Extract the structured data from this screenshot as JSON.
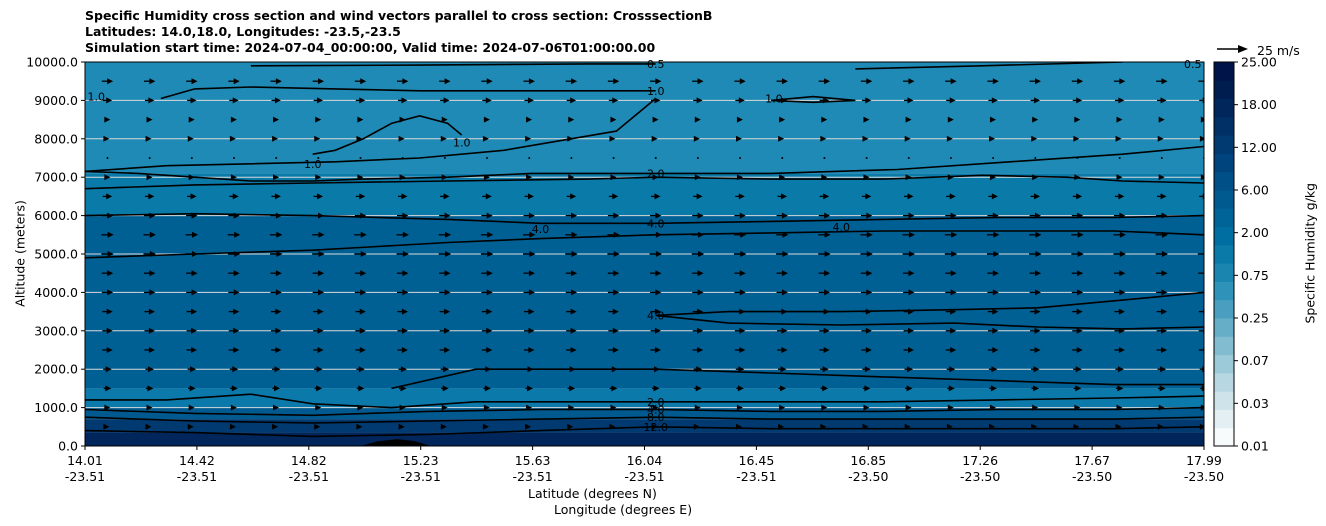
{
  "chart_data": {
    "type": "heatmap",
    "title_lines": [
      "Specific Humidity cross section and wind vectors parallel to cross section: CrosssectionB",
      "Latitudes: 14.0,18.0, Longitudes: -23.5,-23.5",
      "Simulation start time: 2024-07-04_00:00:00, Valid time: 2024-07-06T01:00:00.00"
    ],
    "xlabel_lat": "Latitude (degrees N)",
    "xlabel_lon": "Longitude (degrees E)",
    "ylabel": "Altitude (meters)",
    "colorbar_label": "Specific Humidity g/kg",
    "wind_key_label": "25 m/s",
    "ylim": [
      0,
      10000
    ],
    "yticks": [
      {
        "v": 0,
        "label": "0.0"
      },
      {
        "v": 1000,
        "label": "1000.0"
      },
      {
        "v": 2000,
        "label": "2000.0"
      },
      {
        "v": 3000,
        "label": "3000.0"
      },
      {
        "v": 4000,
        "label": "4000.0"
      },
      {
        "v": 5000,
        "label": "5000.0"
      },
      {
        "v": 6000,
        "label": "6000.0"
      },
      {
        "v": 7000,
        "label": "7000.0"
      },
      {
        "v": 8000,
        "label": "8000.0"
      },
      {
        "v": 9000,
        "label": "9000.0"
      },
      {
        "v": 10000,
        "label": "10000.0"
      }
    ],
    "xticks": [
      {
        "lat": "14.01",
        "lon": "-23.51"
      },
      {
        "lat": "14.42",
        "lon": "-23.51"
      },
      {
        "lat": "14.82",
        "lon": "-23.51"
      },
      {
        "lat": "15.23",
        "lon": "-23.51"
      },
      {
        "lat": "15.63",
        "lon": "-23.51"
      },
      {
        "lat": "16.04",
        "lon": "-23.51"
      },
      {
        "lat": "16.45",
        "lon": "-23.51"
      },
      {
        "lat": "16.85",
        "lon": "-23.50"
      },
      {
        "lat": "17.26",
        "lon": "-23.50"
      },
      {
        "lat": "17.67",
        "lon": "-23.50"
      },
      {
        "lat": "17.99",
        "lon": "-23.50"
      }
    ],
    "colorbar_ticks": [
      "0.01",
      "0.03",
      "0.07",
      "0.25",
      "0.75",
      "2.00",
      "6.00",
      "12.00",
      "18.00",
      "25.00"
    ],
    "colorbar_levels": [
      "#f7fbfc",
      "#e3eff3",
      "#cfe4ea",
      "#b7d8e2",
      "#9dcad9",
      "#82bcd1",
      "#66adc8",
      "#4a9fc0",
      "#2f92b8",
      "#1a86b0",
      "#0a7aa9",
      "#006ea0",
      "#006498",
      "#005a8f",
      "#004f87",
      "#00447d",
      "#003a71",
      "#003066",
      "#00265b",
      "#001d50",
      "#00144a"
    ],
    "humidity_bands": [
      {
        "alt_top": 10000,
        "color": "#1f8ab5"
      },
      {
        "alt_top": 7100,
        "color": "#0a7aa9"
      },
      {
        "alt_top": 6000,
        "color": "#005f93"
      },
      {
        "alt_top": 1500,
        "color": "#0b7aab"
      },
      {
        "alt_top": 1000,
        "color": "#005a8f"
      },
      {
        "alt_top": 700,
        "color": "#003a71"
      },
      {
        "alt_top": 350,
        "color": "#00265b"
      }
    ],
    "contours": [
      {
        "level": "0.5",
        "points": [
          [
            14.6,
            9900
          ],
          [
            15.2,
            9920
          ],
          [
            15.8,
            9950
          ],
          [
            16.04,
            9950
          ]
        ]
      },
      {
        "level": "0.5",
        "points": [
          [
            16.75,
            9820
          ],
          [
            17.2,
            9900
          ],
          [
            17.7,
            10000
          ]
        ]
      },
      {
        "level": "1.0",
        "points": [
          [
            14.01,
            7150
          ],
          [
            14.3,
            7300
          ],
          [
            14.6,
            7350
          ],
          [
            14.9,
            7400
          ],
          [
            15.2,
            7500
          ],
          [
            15.5,
            7700
          ],
          [
            15.9,
            8200
          ],
          [
            16.04,
            9050
          ]
        ]
      },
      {
        "level": "1.0",
        "points": [
          [
            14.01,
            7150
          ],
          [
            14.2,
            7100
          ],
          [
            14.4,
            7000
          ],
          [
            14.6,
            6900
          ],
          [
            14.82,
            6900
          ],
          [
            15.0,
            6950
          ],
          [
            15.3,
            7000
          ],
          [
            15.6,
            7100
          ],
          [
            16.0,
            7100
          ],
          [
            16.45,
            7100
          ],
          [
            16.9,
            7200
          ],
          [
            17.3,
            7400
          ],
          [
            17.7,
            7600
          ],
          [
            17.99,
            7800
          ]
        ]
      },
      {
        "level": "1.0",
        "points": [
          [
            14.28,
            9050
          ],
          [
            14.4,
            9300
          ],
          [
            14.6,
            9350
          ],
          [
            14.9,
            9300
          ],
          [
            15.2,
            9250
          ],
          [
            15.6,
            9250
          ],
          [
            16.04,
            9250
          ]
        ]
      },
      {
        "level": "1.0",
        "points": [
          [
            14.82,
            7600
          ],
          [
            14.9,
            7700
          ],
          [
            15.0,
            8000
          ],
          [
            15.1,
            8400
          ],
          [
            15.2,
            8600
          ],
          [
            15.3,
            8400
          ],
          [
            15.35,
            8100
          ]
        ]
      },
      {
        "level": "1.0",
        "points": [
          [
            16.45,
            9000
          ],
          [
            16.6,
            9100
          ],
          [
            16.75,
            9000
          ],
          [
            16.6,
            8950
          ],
          [
            16.45,
            9000
          ]
        ]
      },
      {
        "level": "2.0",
        "points": [
          [
            14.01,
            6700
          ],
          [
            14.4,
            6800
          ],
          [
            14.82,
            6850
          ],
          [
            15.3,
            6900
          ],
          [
            15.8,
            6950
          ],
          [
            16.04,
            7000
          ],
          [
            16.45,
            6950
          ],
          [
            16.85,
            6950
          ],
          [
            17.2,
            7050
          ],
          [
            17.5,
            7000
          ],
          [
            17.7,
            6900
          ],
          [
            17.99,
            6850
          ]
        ]
      },
      {
        "level": "4.0",
        "points": [
          [
            14.01,
            6000
          ],
          [
            14.4,
            6050
          ],
          [
            14.82,
            6000
          ],
          [
            15.3,
            5900
          ],
          [
            15.63,
            5800
          ],
          [
            16.04,
            5800
          ],
          [
            16.45,
            5850
          ],
          [
            16.85,
            5900
          ],
          [
            17.26,
            5950
          ],
          [
            17.67,
            5950
          ],
          [
            17.99,
            6000
          ]
        ]
      },
      {
        "level": "4.0",
        "points": [
          [
            14.01,
            4900
          ],
          [
            14.4,
            5000
          ],
          [
            14.82,
            5100
          ],
          [
            15.3,
            5300
          ],
          [
            15.63,
            5400
          ],
          [
            16.04,
            5500
          ],
          [
            16.45,
            5550
          ],
          [
            16.85,
            5600
          ],
          [
            17.26,
            5600
          ],
          [
            17.67,
            5600
          ],
          [
            17.99,
            5500
          ]
        ]
      },
      {
        "level": "4.0",
        "points": [
          [
            16.04,
            3400
          ],
          [
            16.3,
            3500
          ],
          [
            16.7,
            3500
          ],
          [
            17.1,
            3550
          ],
          [
            17.4,
            3600
          ],
          [
            17.7,
            3800
          ],
          [
            17.99,
            4000
          ]
        ]
      },
      {
        "level": "4.0",
        "points": [
          [
            16.04,
            3400
          ],
          [
            16.3,
            3200
          ],
          [
            16.7,
            3150
          ],
          [
            17.1,
            3200
          ],
          [
            17.4,
            3100
          ],
          [
            17.7,
            3050
          ],
          [
            17.99,
            3100
          ]
        ]
      },
      {
        "level": "2.0",
        "points": [
          [
            15.1,
            1500
          ],
          [
            15.4,
            2000
          ],
          [
            15.8,
            2000
          ],
          [
            16.04,
            2000
          ],
          [
            16.45,
            1900
          ],
          [
            16.85,
            1800
          ],
          [
            17.26,
            1700
          ],
          [
            17.67,
            1600
          ],
          [
            17.99,
            1600
          ]
        ]
      },
      {
        "level": "2.0",
        "points": [
          [
            14.01,
            1200
          ],
          [
            14.3,
            1200
          ],
          [
            14.6,
            1350
          ],
          [
            14.82,
            1100
          ],
          [
            15.1,
            1000
          ],
          [
            15.4,
            1150
          ],
          [
            15.8,
            1150
          ],
          [
            16.04,
            1150
          ],
          [
            16.45,
            1150
          ],
          [
            16.85,
            1150
          ],
          [
            17.26,
            1200
          ],
          [
            17.67,
            1250
          ],
          [
            17.99,
            1300
          ]
        ]
      },
      {
        "level": "4.0",
        "points": [
          [
            14.01,
            950
          ],
          [
            14.4,
            850
          ],
          [
            14.82,
            800
          ],
          [
            15.23,
            900
          ],
          [
            15.63,
            950
          ],
          [
            16.04,
            950
          ],
          [
            16.45,
            900
          ],
          [
            16.85,
            900
          ],
          [
            17.26,
            950
          ],
          [
            17.67,
            950
          ],
          [
            17.99,
            1000
          ]
        ]
      },
      {
        "level": "8.0",
        "points": [
          [
            14.01,
            750
          ],
          [
            14.4,
            650
          ],
          [
            14.82,
            600
          ],
          [
            15.23,
            650
          ],
          [
            15.63,
            700
          ],
          [
            16.04,
            750
          ],
          [
            16.45,
            700
          ],
          [
            16.85,
            700
          ],
          [
            17.26,
            700
          ],
          [
            17.67,
            700
          ],
          [
            17.99,
            750
          ]
        ]
      },
      {
        "level": "12.0",
        "points": [
          [
            14.01,
            400
          ],
          [
            14.4,
            350
          ],
          [
            14.82,
            250
          ],
          [
            15.23,
            300
          ],
          [
            15.63,
            400
          ],
          [
            16.04,
            500
          ],
          [
            16.45,
            450
          ],
          [
            16.85,
            450
          ],
          [
            17.26,
            450
          ],
          [
            17.67,
            450
          ],
          [
            17.99,
            500
          ]
        ]
      }
    ],
    "contour_labels": [
      {
        "text": "0.5",
        "x": 16.04,
        "y": 9950
      },
      {
        "text": "1.0",
        "x": 16.04,
        "y": 9250
      },
      {
        "text": "1.0",
        "x": 14.05,
        "y": 9100
      },
      {
        "text": "1.0",
        "x": 14.82,
        "y": 7350
      },
      {
        "text": "1.0",
        "x": 15.35,
        "y": 7900
      },
      {
        "text": "1.0",
        "x": 16.46,
        "y": 9050
      },
      {
        "text": "2.0",
        "x": 16.04,
        "y": 7100
      },
      {
        "text": "4.0",
        "x": 16.04,
        "y": 5800
      },
      {
        "text": "4.0",
        "x": 15.63,
        "y": 5650
      },
      {
        "text": "4.0",
        "x": 16.7,
        "y": 5700
      },
      {
        "text": "4.0",
        "x": 16.04,
        "y": 3400
      },
      {
        "text": "2.0",
        "x": 16.04,
        "y": 1150
      },
      {
        "text": "4.0",
        "x": 16.04,
        "y": 950
      },
      {
        "text": "8.0",
        "x": 16.04,
        "y": 750
      },
      {
        "text": "12.0",
        "x": 16.04,
        "y": 500
      },
      {
        "text": "0.5",
        "x": 17.95,
        "y": 9950
      }
    ],
    "wind_vectors": {
      "x_columns": [
        14.09,
        14.24,
        14.39,
        14.54,
        14.69,
        14.84,
        14.99,
        15.14,
        15.29,
        15.44,
        15.59,
        15.74,
        15.89,
        16.04,
        16.19,
        16.34,
        16.49,
        16.64,
        16.79,
        16.94,
        17.09,
        17.24,
        17.39,
        17.54,
        17.69,
        17.84,
        17.99
      ],
      "rows": [
        {
          "alt": 9500,
          "speed": 12
        },
        {
          "alt": 9000,
          "speed": 10
        },
        {
          "alt": 8500,
          "speed": 6
        },
        {
          "alt": 8000,
          "speed": 4
        },
        {
          "alt": 7500,
          "speed": 3
        },
        {
          "alt": 7000,
          "speed": 6
        },
        {
          "alt": 6500,
          "speed": 10
        },
        {
          "alt": 6000,
          "speed": 12
        },
        {
          "alt": 5500,
          "speed": 13
        },
        {
          "alt": 5000,
          "speed": 13
        },
        {
          "alt": 4500,
          "speed": 12
        },
        {
          "alt": 4000,
          "speed": 12
        },
        {
          "alt": 3500,
          "speed": 11
        },
        {
          "alt": 3000,
          "speed": 11
        },
        {
          "alt": 2500,
          "speed": 11
        },
        {
          "alt": 2000,
          "speed": 9
        },
        {
          "alt": 1500,
          "speed": 8
        },
        {
          "alt": 1000,
          "speed": 6
        },
        {
          "alt": 500,
          "speed": 4
        }
      ]
    },
    "terrain": [
      {
        "x": 14.99,
        "alt": 0
      },
      {
        "x": 15.05,
        "alt": 120
      },
      {
        "x": 15.12,
        "alt": 180
      },
      {
        "x": 15.18,
        "alt": 130
      },
      {
        "x": 15.24,
        "alt": 0
      }
    ]
  }
}
